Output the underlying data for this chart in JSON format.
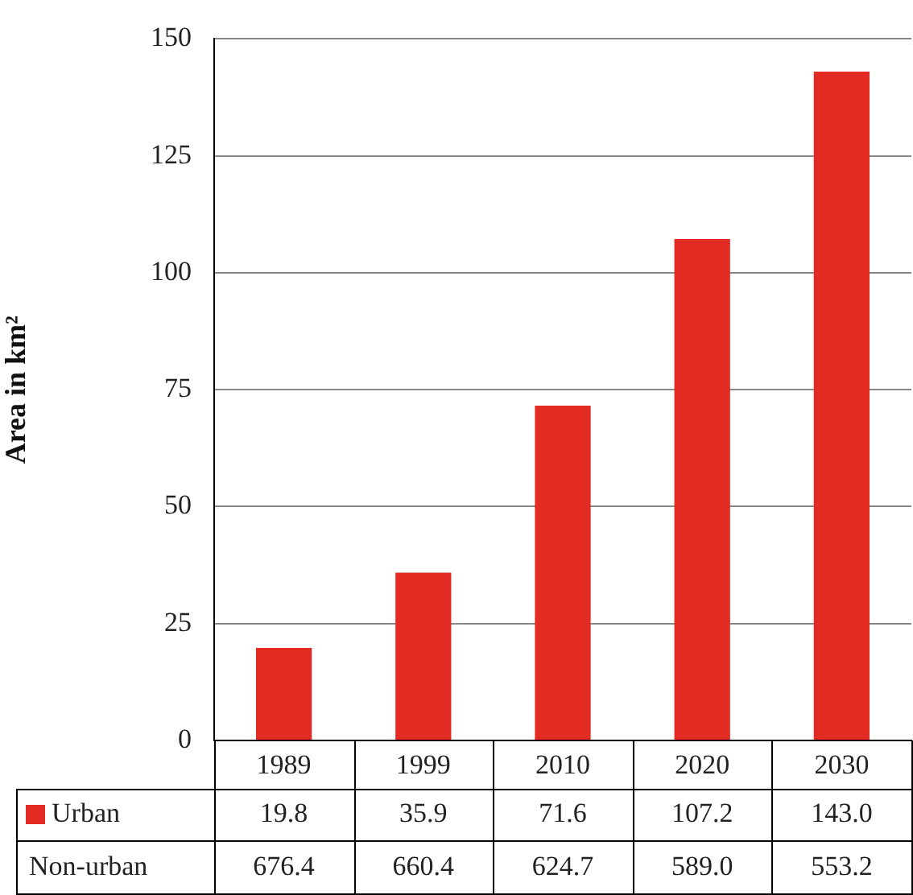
{
  "chart_data": {
    "type": "bar",
    "ylabel": "Area in km²",
    "categories": [
      "1989",
      "1999",
      "2010",
      "2020",
      "2030"
    ],
    "series": [
      {
        "name": "Urban",
        "color": "#e32b23",
        "values": [
          19.8,
          35.9,
          71.6,
          107.2,
          143.0
        ],
        "value_labels": [
          "19.8",
          "35.9",
          "71.6",
          "107.2",
          "143.0"
        ]
      },
      {
        "name": "Non-urban",
        "values": [
          null,
          null,
          null,
          null,
          null
        ],
        "value_labels": [
          "676.4",
          "660.4",
          "624.7",
          "589.0",
          "553.2"
        ]
      }
    ],
    "ylim": [
      0,
      150
    ],
    "yticks": [
      0,
      25,
      50,
      75,
      100,
      125,
      150
    ],
    "grid": "y"
  }
}
